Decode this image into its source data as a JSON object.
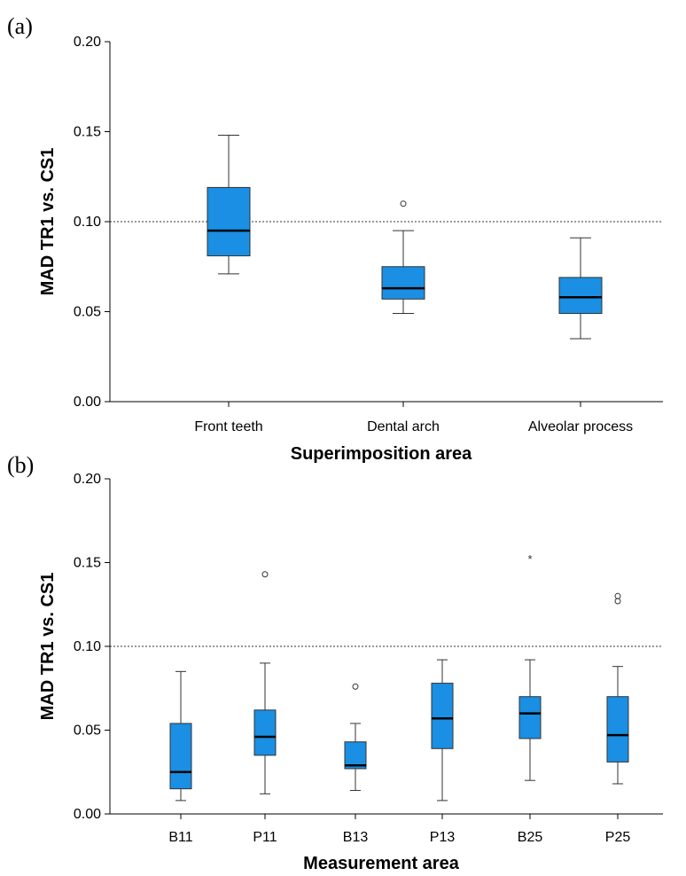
{
  "chart_data": [
    {
      "type": "box",
      "panel_label": "(a)",
      "ylabel": "MAD TR1 vs. CS1",
      "xlabel": "Superimposition area",
      "ylim": [
        0,
        0.2
      ],
      "yticks": [
        "0.00",
        "0.05",
        "0.10",
        "0.15",
        "0.20"
      ],
      "reference_line": 0.1,
      "categories": [
        "Front teeth",
        "Dental arch",
        "Alveolar process"
      ],
      "boxes": [
        {
          "min": 0.071,
          "q1": 0.081,
          "median": 0.095,
          "q3": 0.119,
          "max": 0.148,
          "outliers": [],
          "extremes": []
        },
        {
          "min": 0.049,
          "q1": 0.057,
          "median": 0.063,
          "q3": 0.075,
          "max": 0.095,
          "outliers": [
            0.11
          ],
          "extremes": []
        },
        {
          "min": 0.035,
          "q1": 0.049,
          "median": 0.058,
          "q3": 0.069,
          "max": 0.091,
          "outliers": [],
          "extremes": []
        }
      ]
    },
    {
      "type": "box",
      "panel_label": "(b)",
      "ylabel": "MAD TR1 vs. CS1",
      "xlabel": "Measurement area",
      "ylim": [
        0,
        0.2
      ],
      "yticks": [
        "0.00",
        "0.05",
        "0.10",
        "0.15",
        "0.20"
      ],
      "reference_line": 0.1,
      "categories": [
        "B11",
        "P11",
        "B13",
        "P13",
        "B25",
        "P25"
      ],
      "boxes": [
        {
          "min": 0.008,
          "q1": 0.015,
          "median": 0.025,
          "q3": 0.054,
          "max": 0.085,
          "outliers": [],
          "extremes": []
        },
        {
          "min": 0.012,
          "q1": 0.035,
          "median": 0.046,
          "q3": 0.062,
          "max": 0.09,
          "outliers": [
            0.143
          ],
          "extremes": []
        },
        {
          "min": 0.014,
          "q1": 0.027,
          "median": 0.029,
          "q3": 0.043,
          "max": 0.054,
          "outliers": [
            0.076
          ],
          "extremes": []
        },
        {
          "min": 0.008,
          "q1": 0.039,
          "median": 0.057,
          "q3": 0.078,
          "max": 0.092,
          "outliers": [],
          "extremes": []
        },
        {
          "min": 0.02,
          "q1": 0.045,
          "median": 0.06,
          "q3": 0.07,
          "max": 0.092,
          "outliers": [],
          "extremes": [
            0.153
          ]
        },
        {
          "min": 0.018,
          "q1": 0.031,
          "median": 0.047,
          "q3": 0.07,
          "max": 0.088,
          "outliers": [
            0.127,
            0.13
          ],
          "extremes": []
        }
      ],
      "extreme_marker": "*"
    }
  ]
}
